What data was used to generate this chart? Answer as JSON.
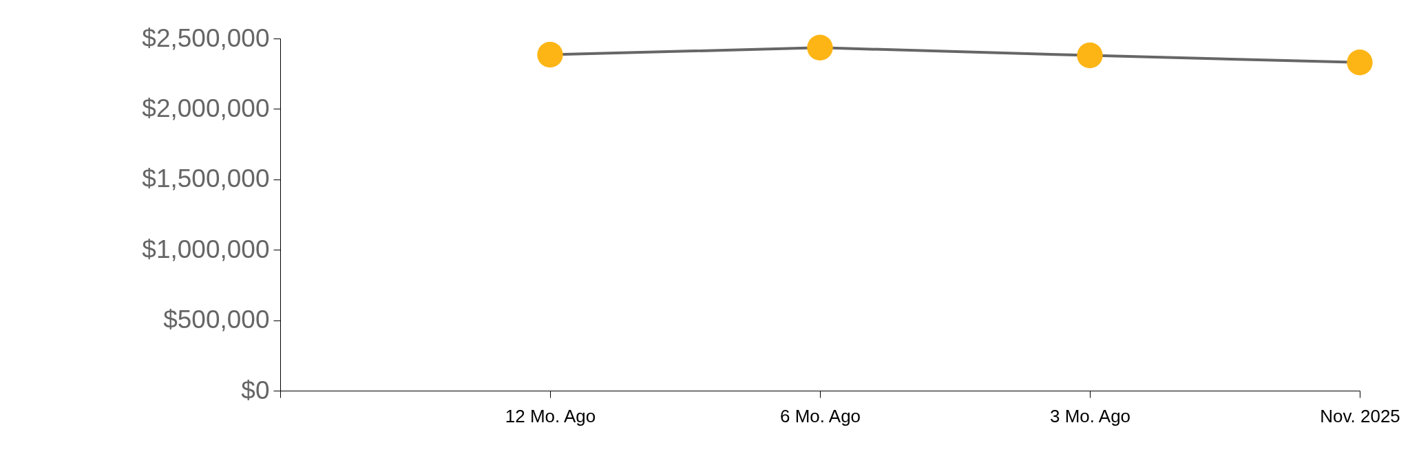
{
  "chart_data": {
    "type": "line",
    "categories": [
      null,
      "12 Mo. Ago",
      "6 Mo. Ago",
      "3 Mo. Ago",
      "Nov. 2025"
    ],
    "series": [
      {
        "color": "#fdb515",
        "values": [
          null,
          2385000,
          2435000,
          2380000,
          2330000
        ]
      }
    ],
    "marker": "circle",
    "ylim": [
      0,
      2500000
    ],
    "yticks": [
      {
        "value": 0,
        "label": "$0"
      },
      {
        "value": 500000,
        "label": "$500,000"
      },
      {
        "value": 1000000,
        "label": "$1,000,000"
      },
      {
        "value": 1500000,
        "label": "$1,500,000"
      },
      {
        "value": 2000000,
        "label": "$2,000,000"
      },
      {
        "value": 2500000,
        "label": "$2,500,000"
      }
    ],
    "grid": false
  }
}
